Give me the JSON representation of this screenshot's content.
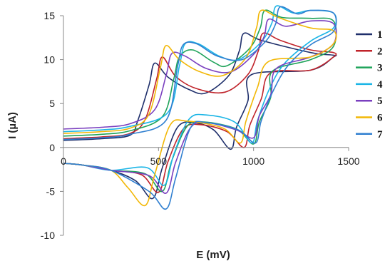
{
  "chart_data": {
    "type": "line",
    "title": "",
    "xlabel": "E (mV)",
    "ylabel": "I (µA)",
    "xlim": [
      0,
      1500
    ],
    "ylim": [
      -10,
      15
    ],
    "xticks": [
      0,
      500,
      1000,
      1500
    ],
    "yticks": [
      -10,
      -5,
      0,
      5,
      10,
      15
    ],
    "grid": false,
    "legend_position": "right",
    "series": [
      {
        "name": "1",
        "color": "#1f2f6b",
        "peaks": {
          "ox1": [
            480,
            9.6
          ],
          "ox2": [
            950,
            13.0
          ],
          "red1": [
            470,
            -5.8
          ],
          "red2": [
            880,
            -0.2
          ]
        },
        "baseline_low": 0.8,
        "mid_plateau": 6.2,
        "end_top": 10.5,
        "end_bottom": 10.3,
        "return_mid": 2.8,
        "return_mid2": 6.8
      },
      {
        "name": "2",
        "color": "#c0232a",
        "peaks": {
          "ox1": [
            520,
            10.3
          ],
          "ox2": [
            1050,
            13.0
          ],
          "red1": [
            500,
            -5.1
          ],
          "red2": [
            950,
            0.0
          ]
        },
        "baseline_low": 1.0,
        "mid_plateau": 6.3,
        "end_top": 10.8,
        "end_bottom": 10.3,
        "return_mid": 2.6,
        "return_mid2": 7.0
      },
      {
        "name": "3",
        "color": "#1fa35a",
        "peaks": {
          "ox1": [
            610,
            10.3
          ],
          "ox2": [
            1060,
            15.6
          ],
          "red1": [
            520,
            -5.0
          ],
          "red2": [
            1000,
            0.4
          ]
        },
        "baseline_low": 1.3,
        "mid_plateau": 9.3,
        "end_top": 14.4,
        "end_bottom": 11.5,
        "return_mid": 2.9,
        "return_mid2": 7.2
      },
      {
        "name": "4",
        "color": "#1bb5e6",
        "peaks": {
          "ox1": [
            640,
            11.8
          ],
          "ox2": [
            1120,
            16.1
          ],
          "red1": [
            530,
            -4.3
          ],
          "red2": [
            990,
            0.5
          ]
        },
        "baseline_low": 1.8,
        "mid_plateau": 10.0,
        "end_top": 15.3,
        "end_bottom": 13.6,
        "return_mid": 3.7,
        "return_mid2": 8.0
      },
      {
        "name": "5",
        "color": "#7a3fbf",
        "peaks": {
          "ox1": [
            570,
            10.7
          ],
          "ox2": [
            1080,
            14.6
          ],
          "red1": [
            540,
            -5.2
          ],
          "red2": [
            1000,
            1.1
          ]
        },
        "baseline_low": 2.1,
        "mid_plateau": 8.6,
        "end_top": 14.1,
        "end_bottom": 11.8,
        "return_mid": 2.8,
        "return_mid2": 7.5
      },
      {
        "name": "6",
        "color": "#f2b705",
        "peaks": {
          "ox1": [
            540,
            11.6
          ],
          "ox2": [
            1040,
            15.6
          ],
          "red1": [
            430,
            -6.6
          ],
          "red2": [
            930,
            0.5
          ]
        },
        "baseline_low": 1.6,
        "mid_plateau": 8.2,
        "end_top": 13.3,
        "end_bottom": 11.8,
        "return_mid": 3.0,
        "return_mid2": 8.3
      },
      {
        "name": "7",
        "color": "#2f7fd0",
        "peaks": {
          "ox1": [
            630,
            11.7
          ],
          "ox2": [
            1140,
            16.0
          ],
          "red1": [
            540,
            -7.0
          ],
          "red2": [
            1010,
            0.5
          ]
        },
        "baseline_low": 0.9,
        "mid_plateau": 10.0,
        "end_top": 15.3,
        "end_bottom": 13.2,
        "return_mid": 2.8,
        "return_mid2": 7.8
      }
    ]
  }
}
